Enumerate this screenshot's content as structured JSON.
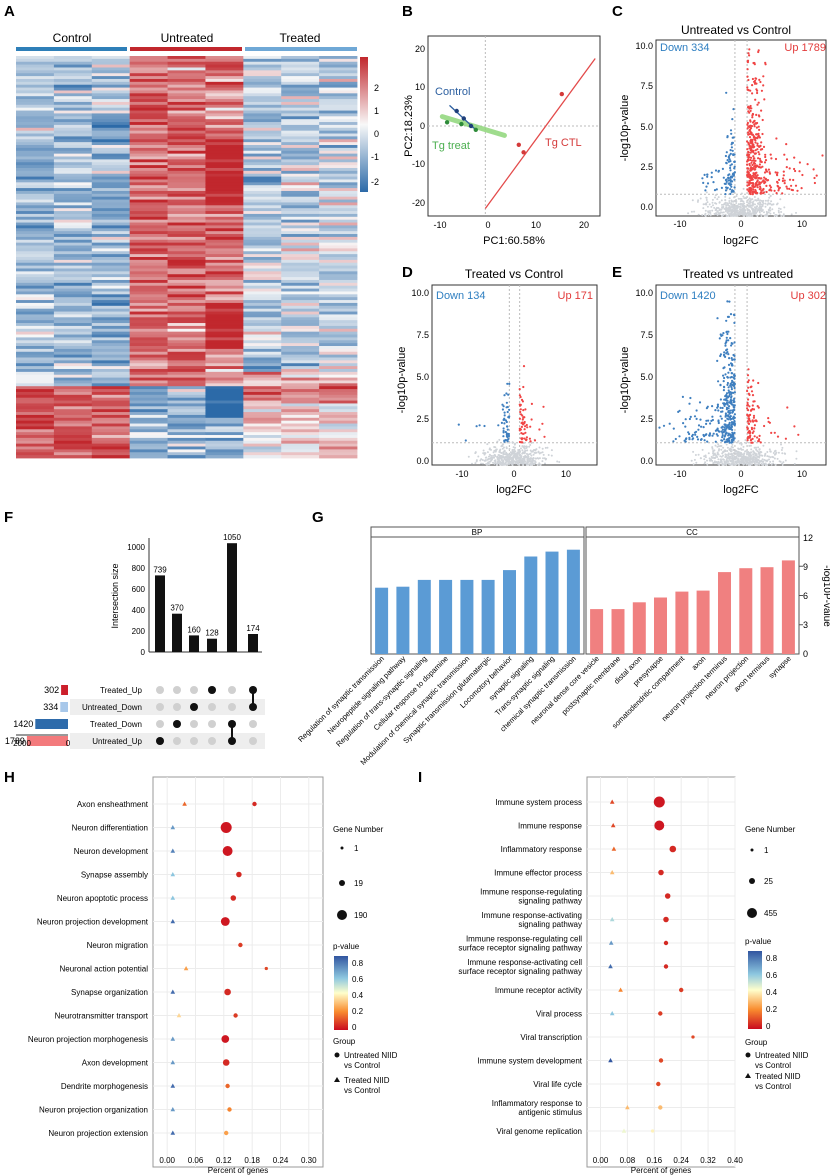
{
  "panels": {
    "A": {
      "label": "A",
      "groups": [
        "Control",
        "Untreated",
        "Treated"
      ],
      "colorbar_ticks": [
        "2",
        "1",
        "0",
        "-1",
        "-2"
      ]
    },
    "B": {
      "label": "B",
      "xlabel": "PC1:60.58%",
      "ylabel": "PC2:18.23%",
      "labels": [
        "Control",
        "Tg treat",
        "Tg CTL"
      ],
      "xticks": [
        -10,
        0,
        10,
        20
      ],
      "yticks": [
        20,
        10,
        0,
        -10,
        -20
      ]
    },
    "C": {
      "label": "C",
      "title": "Untreated vs Control",
      "down": "Down 334",
      "up": "Up 1789"
    },
    "D": {
      "label": "D",
      "title": "Treated vs Control",
      "down": "Down 134",
      "up": "Up 171"
    },
    "E": {
      "label": "E",
      "title": "Treated vs untreated",
      "down": "Down 1420",
      "up": "Up 302"
    },
    "volcano_axes": {
      "xlabel": "log2FC",
      "ylabel": "-log10p-value",
      "xticks": [
        -10,
        0,
        10
      ],
      "yticks": [
        "0.0",
        "2.5",
        "5.0",
        "7.5",
        "10.0"
      ]
    },
    "F": {
      "label": "F",
      "ylabel": "Intersection size",
      "yticks": [
        0,
        200,
        400,
        600,
        800,
        1000
      ],
      "set_axis_ticks": [
        "2000",
        "0"
      ]
    },
    "G": {
      "label": "G",
      "ylabel": "-log10P-value",
      "yticks": [
        0,
        3,
        6,
        9,
        12
      ],
      "facets": [
        "BP",
        "CC"
      ]
    },
    "H": {
      "label": "H"
    },
    "I": {
      "label": "I"
    },
    "dot_axes": {
      "xlabel": "Percent of genes"
    },
    "dot_legend": {
      "gene_number_title": "Gene Number",
      "pvalue_title": "p-value",
      "group_title": "Group",
      "group_untreated": [
        "Untreated NIID",
        "vs Control"
      ],
      "group_treated": [
        "Treated NIID",
        "vs Control"
      ],
      "H_sizes": [
        "1",
        "19",
        "190"
      ],
      "I_sizes": [
        "1",
        "25",
        "455"
      ],
      "pvalue_ticks": [
        "0.8",
        "0.6",
        "0.4",
        "0.2",
        "0"
      ]
    }
  },
  "chart_data": [
    {
      "type": "heatmap",
      "panel": "A",
      "columns_per_group": 3,
      "groups": [
        "Control",
        "Untreated",
        "Treated"
      ],
      "colorbar_range": [
        -2,
        2
      ]
    },
    {
      "type": "scatter",
      "panel": "B",
      "xlim": [
        -12,
        24
      ],
      "ylim": [
        -24,
        24
      ],
      "series": [
        {
          "name": "Control",
          "points": [
            [
              -6,
              4
            ],
            [
              -4.5,
              2
            ],
            [
              -3,
              0
            ]
          ]
        },
        {
          "name": "Tg treat",
          "points": [
            [
              -8,
              1
            ],
            [
              -5,
              0.5
            ],
            [
              -2,
              -1
            ]
          ]
        },
        {
          "name": "Tg CTL",
          "points": [
            [
              7,
              -5
            ],
            [
              8,
              -7
            ],
            [
              16,
              8.5
            ]
          ]
        }
      ]
    },
    {
      "type": "scatter",
      "panel": "C",
      "title": "Untreated vs Control",
      "xlim": [
        -14,
        14
      ],
      "ylim": [
        0,
        10.5
      ],
      "down": 334,
      "up": 1789,
      "spread_down": 1.0,
      "spread_up": 1.6
    },
    {
      "type": "scatter",
      "panel": "D",
      "title": "Treated vs Control",
      "xlim": [
        -16,
        16
      ],
      "ylim": [
        0,
        10.5
      ],
      "down": 134,
      "up": 171,
      "spread_down": 0.8,
      "spread_up": 0.8
    },
    {
      "type": "scatter",
      "panel": "E",
      "title": "Treated vs untreated",
      "xlim": [
        -14,
        14
      ],
      "ylim": [
        0,
        10.5
      ],
      "down": 1420,
      "up": 302,
      "spread_down": 1.5,
      "spread_up": 0.9
    },
    {
      "type": "bar",
      "panel": "F",
      "ylabel": "Intersection size",
      "ylim": [
        0,
        1100
      ],
      "sets": [
        {
          "name": "Treated_Up",
          "size": 302,
          "color": "#cc1f2b"
        },
        {
          "name": "Untreated_Down",
          "size": 334,
          "color": "#a8c8ea"
        },
        {
          "name": "Treated_Down",
          "size": 1420,
          "color": "#2e6bab"
        },
        {
          "name": "Untreated_Up",
          "size": 1789,
          "color": "#f37a7c"
        }
      ],
      "set_xlim": [
        0,
        2000
      ],
      "intersections": [
        {
          "value": 739,
          "members": [
            "Untreated_Up"
          ]
        },
        {
          "value": 370,
          "members": [
            "Treated_Down"
          ]
        },
        {
          "value": 160,
          "members": [
            "Untreated_Down"
          ]
        },
        {
          "value": 128,
          "members": [
            "Treated_Up"
          ]
        },
        {
          "value": 1050,
          "members": [
            "Untreated_Up",
            "Treated_Down"
          ]
        },
        {
          "value": 174,
          "members": [
            "Untreated_Down",
            "Treated_Up"
          ]
        }
      ]
    },
    {
      "type": "bar",
      "panel": "G",
      "ylabel": "-log10P-value",
      "ylim": [
        0,
        12
      ],
      "facets": [
        {
          "name": "BP",
          "color": "#5b9bd5",
          "categories": [
            "Regulation of synaptic transmission",
            "Neuropeptide signaling pathway",
            "Regulation of trans-synaptic signaling",
            "Cellular response to dopamine",
            "Modulation of chemical synaptic transmission",
            "Synaptic transmission glutamatergic",
            "Locomotory behavior",
            "synaptic signaling",
            "Trans-synaptic signaling",
            "chemical synaptic transmission"
          ],
          "values": [
            6.8,
            6.9,
            7.6,
            7.6,
            7.6,
            7.6,
            8.6,
            10.0,
            10.5,
            10.7
          ]
        },
        {
          "name": "CC",
          "color": "#f08080",
          "categories": [
            "neuronal dense core vesicle",
            "postsynaptic membrane",
            "distal axon",
            "presynapse",
            "somatodendritic compartment",
            "axon",
            "neuron projection terminus",
            "neuron projection",
            "axon terminus",
            "synapse"
          ],
          "values": [
            4.6,
            4.6,
            5.3,
            5.8,
            6.4,
            6.5,
            8.4,
            8.8,
            8.9,
            9.6
          ]
        }
      ]
    },
    {
      "type": "scatter",
      "panel": "H",
      "xlabel": "Percent of genes",
      "xticks": [
        "0.00",
        "0.06",
        "0.12",
        "0.18",
        "0.24",
        "0.30"
      ],
      "xlim": [
        -0.03,
        0.33
      ],
      "terms": [
        "Axon ensheathment",
        "Neuron differentiation",
        "Neuron development",
        "Synapse assembly",
        "Neuron apoptotic process",
        "Neuron projection development",
        "Neuron migration",
        "Neuronal action potential",
        "Synapse organization",
        "Neurotransmitter transport",
        "Neuron projection morphogenesis",
        "Axon development",
        "Dendrite morphogenesis",
        "Neuron projection organization",
        "Neuron projection extension"
      ],
      "untreated": [
        {
          "x": 0.185,
          "p": 0.05,
          "s": 4
        },
        {
          "x": 0.125,
          "p": 0.02,
          "s": 10
        },
        {
          "x": 0.128,
          "p": 0.02,
          "s": 9
        },
        {
          "x": 0.152,
          "p": 0.05,
          "s": 5
        },
        {
          "x": 0.14,
          "p": 0.05,
          "s": 5
        },
        {
          "x": 0.123,
          "p": 0.02,
          "s": 8
        },
        {
          "x": 0.155,
          "p": 0.08,
          "s": 4
        },
        {
          "x": 0.21,
          "p": 0.1,
          "s": 3
        },
        {
          "x": 0.128,
          "p": 0.05,
          "s": 6
        },
        {
          "x": 0.145,
          "p": 0.08,
          "s": 4
        },
        {
          "x": 0.123,
          "p": 0.02,
          "s": 7
        },
        {
          "x": 0.125,
          "p": 0.05,
          "s": 6
        },
        {
          "x": 0.128,
          "p": 0.15,
          "s": 4
        },
        {
          "x": 0.132,
          "p": 0.2,
          "s": 4
        },
        {
          "x": 0.125,
          "p": 0.25,
          "s": 4
        }
      ],
      "treated": [
        {
          "x": 0.037,
          "p": 0.15
        },
        {
          "x": 0.012,
          "p": 0.7
        },
        {
          "x": 0.012,
          "p": 0.75
        },
        {
          "x": 0.012,
          "p": 0.6
        },
        {
          "x": 0.012,
          "p": 0.6
        },
        {
          "x": 0.012,
          "p": 0.8
        },
        null,
        {
          "x": 0.04,
          "p": 0.25
        },
        {
          "x": 0.012,
          "p": 0.8
        },
        {
          "x": 0.025,
          "p": 0.35
        },
        {
          "x": 0.012,
          "p": 0.7
        },
        {
          "x": 0.012,
          "p": 0.7
        },
        {
          "x": 0.012,
          "p": 0.8
        },
        {
          "x": 0.012,
          "p": 0.7
        },
        {
          "x": 0.012,
          "p": 0.8
        }
      ]
    },
    {
      "type": "scatter",
      "panel": "I",
      "xlabel": "Percent of genes",
      "xticks": [
        "0.00",
        "0.08",
        "0.16",
        "0.24",
        "0.32",
        "0.40"
      ],
      "xlim": [
        -0.04,
        0.4
      ],
      "terms": [
        "Immune system process",
        "Immune response",
        "Inflammatory response",
        "Immune effector process",
        "Immune response-regulating signaling pathway",
        "Immune response-activating signaling pathway",
        "Immune response-regulating cell surface receptor signaling pathway",
        "Immune response-activating cell surface receptor signaling pathway",
        "Immune receptor activity",
        "Viral process",
        "Viral transcription",
        "Immune system development",
        "Viral life cycle",
        "Inflammatory response to antigenic stimulus",
        "Viral genome replication"
      ],
      "untreated": [
        {
          "x": 0.175,
          "p": 0.02,
          "s": 10
        },
        {
          "x": 0.175,
          "p": 0.02,
          "s": 9
        },
        {
          "x": 0.215,
          "p": 0.05,
          "s": 6
        },
        {
          "x": 0.18,
          "p": 0.05,
          "s": 5
        },
        {
          "x": 0.2,
          "p": 0.05,
          "s": 5
        },
        {
          "x": 0.195,
          "p": 0.05,
          "s": 5
        },
        {
          "x": 0.195,
          "p": 0.05,
          "s": 4
        },
        {
          "x": 0.195,
          "p": 0.05,
          "s": 4
        },
        {
          "x": 0.24,
          "p": 0.08,
          "s": 4
        },
        {
          "x": 0.178,
          "p": 0.08,
          "s": 4
        },
        {
          "x": 0.275,
          "p": 0.1,
          "s": 3
        },
        {
          "x": 0.18,
          "p": 0.1,
          "s": 4
        },
        {
          "x": 0.172,
          "p": 0.1,
          "s": 4
        },
        {
          "x": 0.178,
          "p": 0.3,
          "s": 4
        },
        {
          "x": 0.155,
          "p": 0.4,
          "s": 3
        }
      ],
      "treated": [
        {
          "x": 0.035,
          "p": 0.1
        },
        {
          "x": 0.038,
          "p": 0.1
        },
        {
          "x": 0.04,
          "p": 0.15
        },
        {
          "x": 0.035,
          "p": 0.3
        },
        null,
        {
          "x": 0.035,
          "p": 0.55
        },
        {
          "x": 0.032,
          "p": 0.7
        },
        {
          "x": 0.03,
          "p": 0.8
        },
        {
          "x": 0.06,
          "p": 0.2
        },
        {
          "x": 0.035,
          "p": 0.6
        },
        null,
        {
          "x": 0.03,
          "p": 0.85
        },
        null,
        {
          "x": 0.08,
          "p": 0.3
        },
        {
          "x": 0.07,
          "p": 0.45
        }
      ]
    }
  ]
}
